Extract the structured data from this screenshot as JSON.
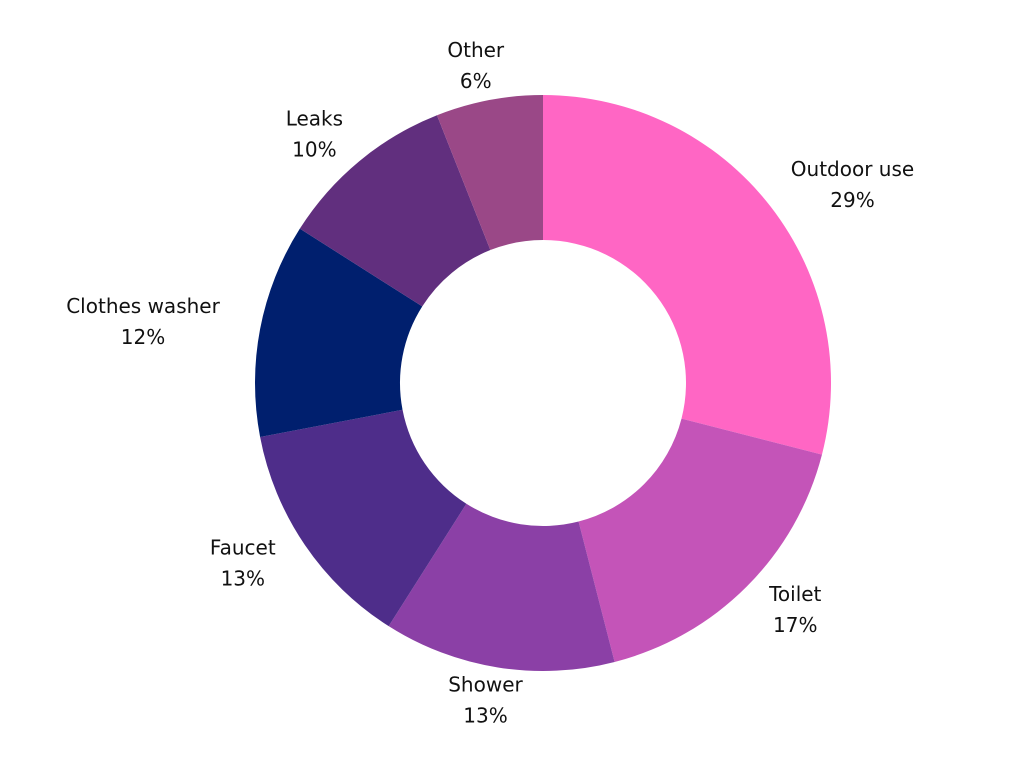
{
  "chart_data": {
    "type": "donut",
    "categories": [
      "Outdoor use",
      "Toilet",
      "Shower",
      "Faucet",
      "Clothes washer",
      "Leaks",
      "Other"
    ],
    "values": [
      29,
      17,
      13,
      13,
      12,
      10,
      6
    ],
    "value_labels": [
      "29%",
      "17%",
      "13%",
      "13%",
      "12%",
      "10%",
      "6%"
    ],
    "colors": [
      "#ff66c4",
      "#c454b8",
      "#8b40a6",
      "#4e2d8a",
      "#001f6e",
      "#612f7e",
      "#9a4887"
    ]
  }
}
